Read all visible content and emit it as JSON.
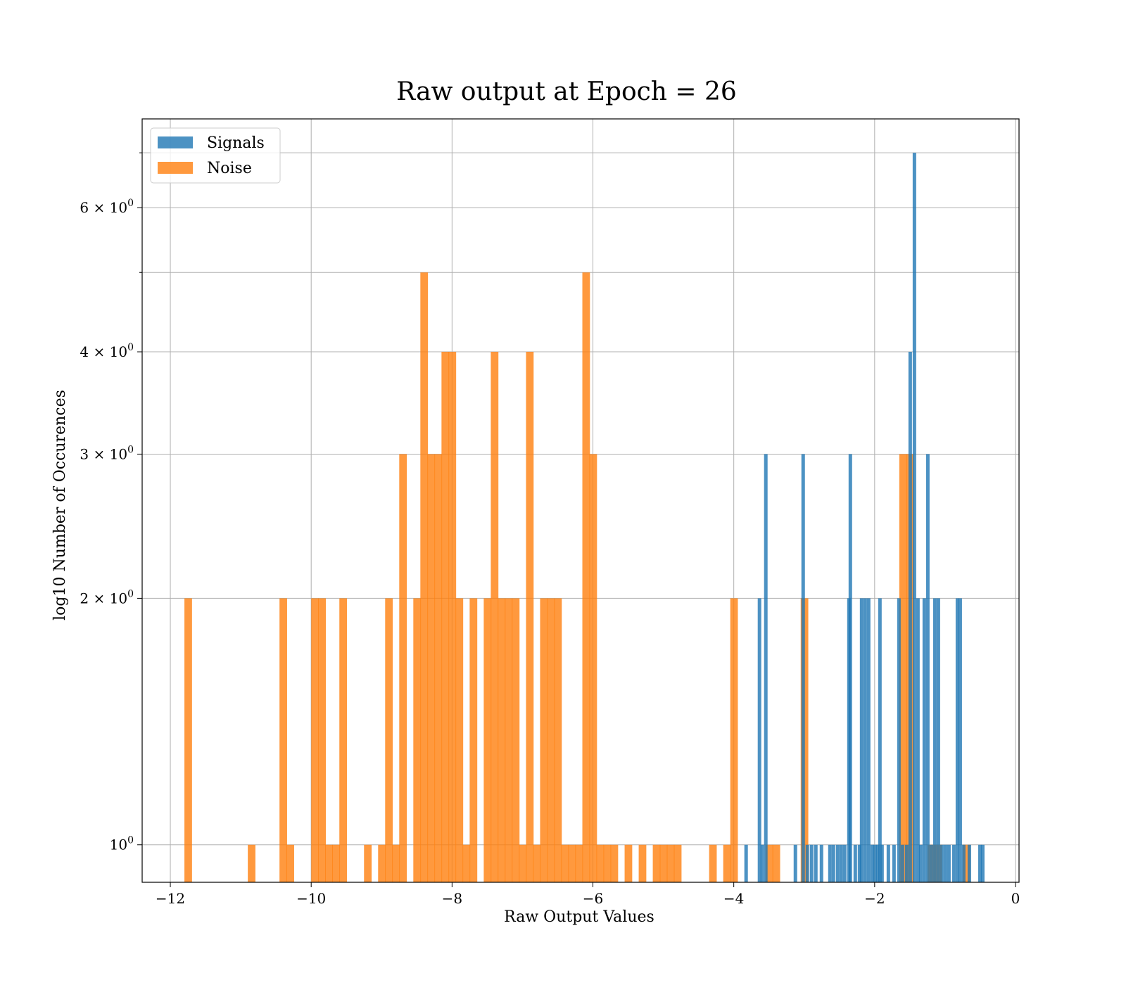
{
  "chart_data": {
    "type": "bar",
    "subtype": "histogram",
    "title": "Raw output at Epoch = 26",
    "xlabel": "Raw Output Values",
    "ylabel": "log10 Number of Occurences",
    "xlim": [
      -12.4,
      0.05
    ],
    "ylim": [
      0.9,
      7.7
    ],
    "yscale": "log",
    "grid": true,
    "legend_position": "top-left",
    "x_ticks": [
      {
        "value": -12,
        "label": "−12"
      },
      {
        "value": -10,
        "label": "−10"
      },
      {
        "value": -8,
        "label": "−8"
      },
      {
        "value": -6,
        "label": "−6"
      },
      {
        "value": -4,
        "label": "−4"
      },
      {
        "value": -2,
        "label": "−2"
      },
      {
        "value": 0,
        "label": "0"
      }
    ],
    "y_ticks": [
      {
        "value": 1,
        "base": "10",
        "exp": "0"
      },
      {
        "value": 2,
        "base": "2 × 10",
        "exp": "0"
      },
      {
        "value": 3,
        "base": "3 × 10",
        "exp": "0"
      },
      {
        "value": 4,
        "base": "4 × 10",
        "exp": "0"
      },
      {
        "value": 6,
        "base": "6 × 10",
        "exp": "0"
      }
    ],
    "y_minor_ticks": [
      5,
      7
    ],
    "series": [
      {
        "name": "Signals",
        "color": "#1f77b4",
        "bin_width": 0.05,
        "bins": [
          [
            -3.85,
            1
          ],
          [
            -3.66,
            2
          ],
          [
            -3.62,
            1
          ],
          [
            -3.57,
            3
          ],
          [
            -3.15,
            1
          ],
          [
            -3.04,
            3
          ],
          [
            -2.98,
            1
          ],
          [
            -2.92,
            1
          ],
          [
            -2.86,
            1
          ],
          [
            -2.78,
            1
          ],
          [
            -2.66,
            1
          ],
          [
            -2.61,
            1
          ],
          [
            -2.55,
            1
          ],
          [
            -2.5,
            1
          ],
          [
            -2.45,
            1
          ],
          [
            -2.39,
            2
          ],
          [
            -2.37,
            3
          ],
          [
            -2.3,
            1
          ],
          [
            -2.24,
            1
          ],
          [
            -2.21,
            2
          ],
          [
            -2.16,
            2
          ],
          [
            -2.11,
            2
          ],
          [
            -2.06,
            1
          ],
          [
            -2.02,
            1
          ],
          [
            -1.98,
            1
          ],
          [
            -1.95,
            2
          ],
          [
            -1.92,
            1
          ],
          [
            -1.83,
            1
          ],
          [
            -1.75,
            1
          ],
          [
            -1.68,
            2
          ],
          [
            -1.63,
            1
          ],
          [
            -1.57,
            1
          ],
          [
            -1.52,
            4
          ],
          [
            -1.46,
            7
          ],
          [
            -1.41,
            2
          ],
          [
            -1.37,
            1
          ],
          [
            -1.32,
            2
          ],
          [
            -1.27,
            3
          ],
          [
            -1.22,
            1
          ],
          [
            -1.17,
            2
          ],
          [
            -1.12,
            2
          ],
          [
            -1.07,
            1
          ],
          [
            -1.02,
            1
          ],
          [
            -0.97,
            1
          ],
          [
            -0.9,
            1
          ],
          [
            -0.85,
            2
          ],
          [
            -0.81,
            2
          ],
          [
            -0.76,
            1
          ],
          [
            -0.68,
            1
          ],
          [
            -0.53,
            1
          ],
          [
            -0.49,
            1
          ]
        ]
      },
      {
        "name": "Noise",
        "color": "#ff7f0e",
        "bin_width": 0.108,
        "bins": [
          [
            -11.8,
            2
          ],
          [
            -10.9,
            1
          ],
          [
            -10.45,
            2
          ],
          [
            -10.35,
            1
          ],
          [
            -10.0,
            2
          ],
          [
            -9.9,
            2
          ],
          [
            -9.8,
            1
          ],
          [
            -9.7,
            1
          ],
          [
            -9.6,
            2
          ],
          [
            -9.25,
            1
          ],
          [
            -9.05,
            1
          ],
          [
            -8.95,
            2
          ],
          [
            -8.85,
            1
          ],
          [
            -8.75,
            3
          ],
          [
            -8.55,
            2
          ],
          [
            -8.45,
            5
          ],
          [
            -8.35,
            3
          ],
          [
            -8.25,
            3
          ],
          [
            -8.15,
            4
          ],
          [
            -8.05,
            4
          ],
          [
            -7.95,
            2
          ],
          [
            -7.85,
            1
          ],
          [
            -7.75,
            2
          ],
          [
            -7.55,
            2
          ],
          [
            -7.45,
            4
          ],
          [
            -7.35,
            2
          ],
          [
            -7.25,
            2
          ],
          [
            -7.15,
            2
          ],
          [
            -7.05,
            1
          ],
          [
            -6.95,
            4
          ],
          [
            -6.85,
            1
          ],
          [
            -6.75,
            2
          ],
          [
            -6.65,
            2
          ],
          [
            -6.55,
            2
          ],
          [
            -6.45,
            1
          ],
          [
            -6.35,
            1
          ],
          [
            -6.25,
            1
          ],
          [
            -6.15,
            5
          ],
          [
            -6.05,
            3
          ],
          [
            -5.95,
            1
          ],
          [
            -5.85,
            1
          ],
          [
            -5.75,
            1
          ],
          [
            -5.55,
            1
          ],
          [
            -5.35,
            1
          ],
          [
            -5.15,
            1
          ],
          [
            -5.05,
            1
          ],
          [
            -4.95,
            1
          ],
          [
            -4.85,
            1
          ],
          [
            -4.35,
            1
          ],
          [
            -4.15,
            1
          ],
          [
            -4.05,
            2
          ],
          [
            -3.55,
            1
          ],
          [
            -3.45,
            1
          ],
          [
            -3.05,
            2
          ],
          [
            -1.65,
            3
          ],
          [
            -1.55,
            3
          ],
          [
            -1.25,
            1
          ],
          [
            -1.15,
            1
          ],
          [
            -0.75,
            1
          ]
        ]
      }
    ]
  }
}
